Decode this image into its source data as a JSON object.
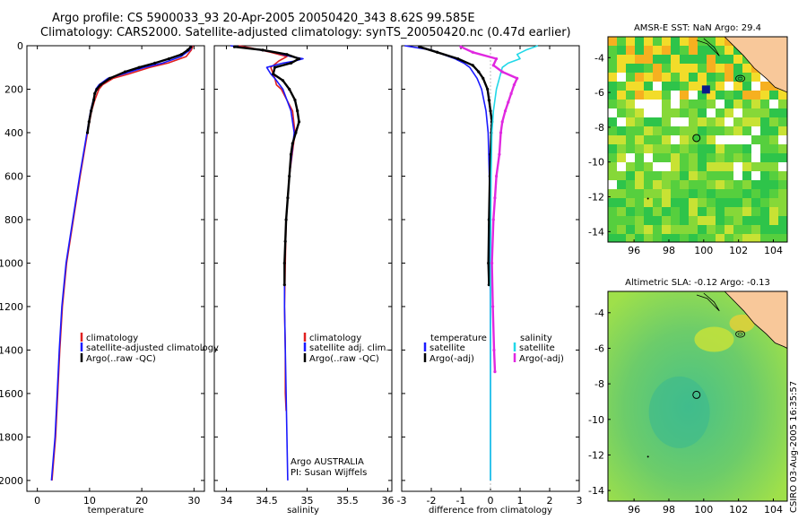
{
  "header": {
    "title_line1": "Argo profile: CS 5900033_93 20-Apr-2005 20050420_343 8.62S 99.585E",
    "title_line2": "Climatology: CARS2000. Satellite-adjusted climatology: synTS_20050420.nc (0.47d earlier)"
  },
  "credit": "CSIRO 03-Aug-2005 16:35:57",
  "colors": {
    "climatology": "#e02020",
    "satellite": "#1a1aff",
    "argo": "#000000",
    "sat_salinity": "#22d8e8",
    "argo_salinity": "#e028e0"
  },
  "chart_data": [
    {
      "type": "line",
      "id": "temperature_profile",
      "xlabel": "temperature",
      "ylabel": "",
      "xlim": [
        -2,
        32
      ],
      "ylim": [
        2050,
        0
      ],
      "y_inverted": true,
      "xticks": [
        0,
        10,
        20,
        30
      ],
      "yticks": [
        0,
        200,
        400,
        600,
        800,
        1000,
        1200,
        1400,
        1600,
        1800,
        2000
      ],
      "legend": [
        "climatology",
        "satellite-adjusted climatology",
        "Argo(..raw -QC)"
      ],
      "series": [
        {
          "name": "climatology",
          "color": "#e02020",
          "depth": [
            0,
            20,
            50,
            80,
            100,
            130,
            150,
            180,
            200,
            250,
            300,
            400,
            600,
            800,
            1000,
            1200,
            1400,
            1600,
            1800,
            2000
          ],
          "values": [
            29.8,
            29.5,
            28.5,
            25,
            21.5,
            17.5,
            14.5,
            12.5,
            11.8,
            11,
            10.4,
            9.6,
            8.2,
            6.9,
            5.6,
            4.8,
            4.3,
            3.9,
            3.5,
            2.8
          ]
        },
        {
          "name": "satellite-adjusted climatology",
          "color": "#1a1aff",
          "depth": [
            0,
            20,
            50,
            80,
            100,
            130,
            150,
            180,
            200,
            250,
            300,
            400,
            600,
            800,
            1000,
            1200,
            1400,
            1600,
            1800,
            2000
          ],
          "values": [
            29.6,
            29.2,
            27.5,
            24,
            20.5,
            16.5,
            13.5,
            11.8,
            11.2,
            10.7,
            10.2,
            9.5,
            8.1,
            6.8,
            5.5,
            4.7,
            4.2,
            3.8,
            3.4,
            2.7
          ]
        },
        {
          "name": "Argo(..raw -QC)",
          "color": "#000000",
          "depth": [
            5,
            20,
            40,
            60,
            80,
            100,
            120,
            150,
            180,
            200,
            220,
            250,
            300,
            350,
            400
          ],
          "values": [
            29.4,
            28.8,
            27.6,
            25.2,
            22.5,
            19.5,
            16.8,
            13.9,
            12.1,
            11.4,
            11.0,
            10.8,
            10.3,
            9.9,
            9.6
          ]
        }
      ]
    },
    {
      "type": "line",
      "id": "salinity_profile",
      "xlabel": "salinity",
      "ylabel": "",
      "xlim": [
        33.85,
        36.05
      ],
      "ylim": [
        2050,
        0
      ],
      "y_inverted": true,
      "xticks": [
        34,
        34.5,
        35,
        35.5,
        36
      ],
      "legend": [
        "climatology",
        "satellite adj. clim.",
        "Argo(..raw -QC)"
      ],
      "annotation": [
        "Argo AUSTRALIA",
        "PI: Susan Wijffels"
      ],
      "series": [
        {
          "name": "climatology",
          "color": "#e02020",
          "depth": [
            0,
            10,
            30,
            50,
            70,
            100,
            150,
            180,
            200,
            250,
            300,
            400,
            600,
            800,
            1000,
            1200,
            1400,
            1600,
            1680
          ],
          "values": [
            34.15,
            34.3,
            34.55,
            34.75,
            34.65,
            34.55,
            34.6,
            34.62,
            34.68,
            34.75,
            34.82,
            34.85,
            34.78,
            34.74,
            34.73,
            34.72,
            34.73,
            34.73,
            34.74
          ]
        },
        {
          "name": "satellite adj. clim.",
          "color": "#1a1aff",
          "depth": [
            0,
            10,
            30,
            50,
            60,
            70,
            80,
            100,
            130,
            150,
            200,
            300,
            400,
            600,
            800,
            1000,
            1200,
            1400,
            1600,
            1800,
            2000
          ],
          "values": [
            34.05,
            34.25,
            34.6,
            34.8,
            34.95,
            34.85,
            34.7,
            34.5,
            34.55,
            34.6,
            34.7,
            34.8,
            34.84,
            34.78,
            34.74,
            34.72,
            34.72,
            34.73,
            34.74,
            34.75,
            34.76
          ]
        },
        {
          "name": "Argo(..raw -QC)",
          "color": "#000000",
          "depth": [
            5,
            20,
            40,
            60,
            80,
            100,
            130,
            160,
            200,
            250,
            300,
            350,
            400,
            450,
            500,
            600,
            700,
            800,
            900,
            1000,
            1100
          ],
          "values": [
            34.1,
            34.45,
            34.75,
            34.9,
            34.8,
            34.6,
            34.58,
            34.7,
            34.78,
            34.85,
            34.88,
            34.9,
            34.86,
            34.82,
            34.8,
            34.78,
            34.76,
            34.74,
            34.73,
            34.72,
            34.72
          ]
        }
      ]
    },
    {
      "type": "line",
      "id": "difference_profile",
      "xlabel": "difference from climatology",
      "ylabel": "",
      "xlim": [
        -3,
        3
      ],
      "ylim": [
        2050,
        0
      ],
      "y_inverted": true,
      "xticks": [
        -3,
        -2,
        -1,
        0,
        1,
        2,
        3
      ],
      "legend": [
        "temperature",
        "satellite",
        "Argo(-adj)",
        "salinity",
        "satellite",
        "Argo(-adj)"
      ],
      "series": [
        {
          "name": "temperature satellite",
          "color": "#1a1aff",
          "depth": [
            0,
            20,
            40,
            60,
            80,
            100,
            150,
            200,
            300,
            400,
            600,
            800,
            1000,
            1500,
            2000
          ],
          "values": [
            -2.9,
            -2.0,
            -1.6,
            -1.2,
            -0.9,
            -0.7,
            -0.45,
            -0.3,
            -0.15,
            -0.08,
            -0.04,
            -0.02,
            -0.01,
            0,
            0
          ]
        },
        {
          "name": "temperature Argo(-adj)",
          "color": "#000000",
          "depth": [
            5,
            30,
            60,
            90,
            120,
            150,
            200,
            250,
            300,
            350,
            400,
            500,
            600,
            800,
            1000,
            1100
          ],
          "values": [
            -2.4,
            -1.8,
            -1.1,
            -0.6,
            -0.4,
            -0.25,
            -0.1,
            -0.05,
            0,
            0.05,
            0.03,
            0,
            -0.02,
            -0.05,
            -0.07,
            -0.05
          ]
        },
        {
          "name": "salinity satellite",
          "color": "#22d8e8",
          "depth": [
            0,
            20,
            40,
            60,
            80,
            100,
            150,
            200,
            300,
            400,
            600,
            800,
            1000,
            1500,
            2000
          ],
          "values": [
            1.6,
            1.2,
            0.9,
            1.0,
            0.6,
            0.4,
            0.3,
            0.2,
            0.1,
            0.05,
            0.02,
            0.01,
            0,
            0,
            0
          ]
        },
        {
          "name": "salinity Argo(-adj)",
          "color": "#e028e0",
          "depth": [
            5,
            30,
            60,
            90,
            120,
            150,
            180,
            220,
            260,
            300,
            350,
            400,
            500,
            600,
            700,
            800,
            1000,
            1200,
            1400,
            1500
          ],
          "values": [
            -1.0,
            -0.6,
            0.2,
            0.1,
            0.4,
            0.9,
            0.8,
            0.7,
            0.6,
            0.5,
            0.4,
            0.35,
            0.3,
            0.2,
            0.15,
            0.1,
            0.05,
            0.08,
            0.12,
            0.15
          ]
        }
      ]
    },
    {
      "type": "heatmap",
      "id": "sst_map",
      "title": "AMSR-E SST: NaN  Argo: 29.4",
      "xlim": [
        94.5,
        104.8
      ],
      "ylim": [
        -14.6,
        -2.8
      ],
      "xticks": [
        96,
        98,
        100,
        102,
        104
      ],
      "yticks": [
        -4,
        -6,
        -8,
        -10,
        -12,
        -14
      ],
      "argo_position": {
        "lon": 99.585,
        "lat": -8.62
      },
      "argo_value": 29.4
    },
    {
      "type": "heatmap",
      "id": "sla_map",
      "title": "Altimetric SLA: -0.12  Argo: -0.13",
      "xlim": [
        94.5,
        104.8
      ],
      "ylim": [
        -14.6,
        -2.8
      ],
      "xticks": [
        96,
        98,
        100,
        102,
        104
      ],
      "yticks": [
        -4,
        -6,
        -8,
        -10,
        -12,
        -14
      ],
      "argo_position": {
        "lon": 99.585,
        "lat": -8.62
      },
      "sla_value": -0.12,
      "argo_value": -0.13
    }
  ]
}
